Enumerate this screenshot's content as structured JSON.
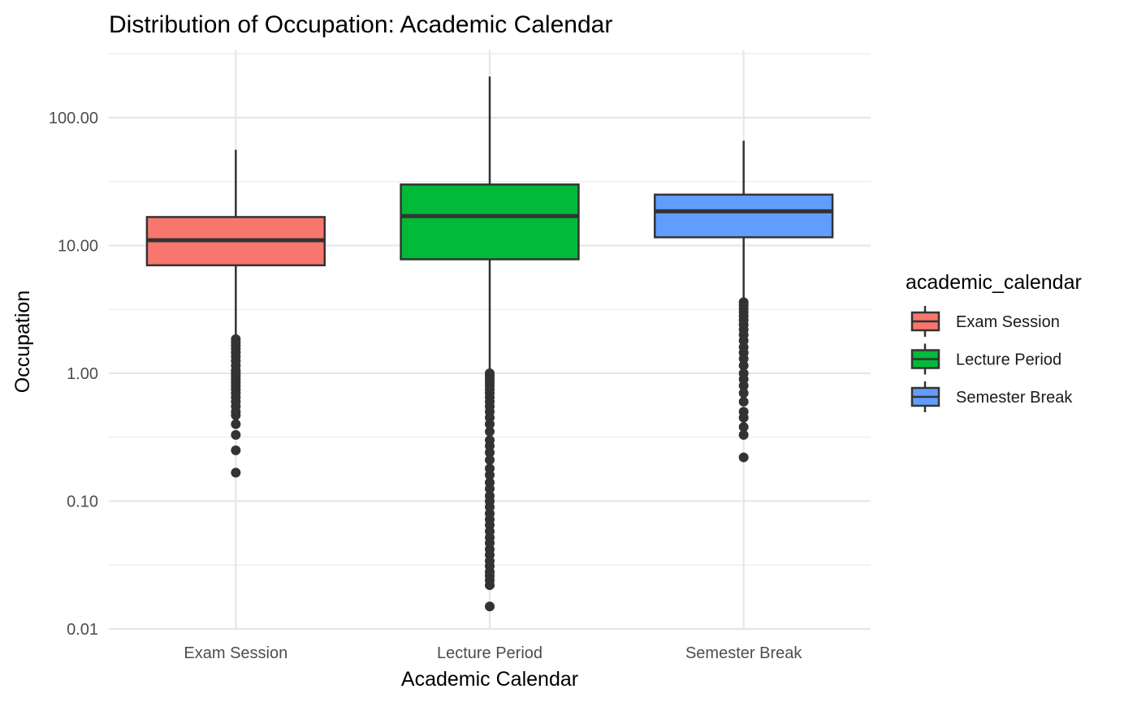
{
  "chart_data": {
    "type": "boxplot",
    "title": "Distribution of Occupation: Academic Calendar",
    "xlabel": "Academic Calendar",
    "ylabel": "Occupation",
    "y_scale": "log10",
    "ylim": [
      0.01,
      300
    ],
    "y_ticks": [
      0.01,
      0.1,
      1,
      10,
      100
    ],
    "y_tick_labels": [
      "0.01",
      "0.10",
      "1.00",
      "10.00",
      "100.00"
    ],
    "categories": [
      "Exam Session",
      "Lecture Period",
      "Semester Break"
    ],
    "grid": true,
    "legend": {
      "title": "academic_calendar",
      "position": "right",
      "entries": [
        "Exam Session",
        "Lecture Period",
        "Semester Break"
      ]
    },
    "series": [
      {
        "name": "Exam Session",
        "color": "#F8766D",
        "min": 1.95,
        "q1": 7.0,
        "median": 11.0,
        "q3": 16.7,
        "max": 56,
        "outliers": [
          1.85,
          1.75,
          1.65,
          1.55,
          1.45,
          1.35,
          1.25,
          1.15,
          1.05,
          1.0,
          0.95,
          0.9,
          0.85,
          0.8,
          0.75,
          0.7,
          0.65,
          0.6,
          0.55,
          0.5,
          0.47,
          0.4,
          0.33,
          0.25,
          0.167
        ]
      },
      {
        "name": "Lecture Period",
        "color": "#00BA38",
        "min": 1.05,
        "q1": 7.8,
        "median": 17.0,
        "q3": 30.0,
        "max": 210,
        "outliers": [
          1.0,
          0.95,
          0.9,
          0.85,
          0.8,
          0.75,
          0.7,
          0.65,
          0.6,
          0.55,
          0.5,
          0.45,
          0.4,
          0.35,
          0.3,
          0.27,
          0.24,
          0.21,
          0.18,
          0.16,
          0.14,
          0.125,
          0.11,
          0.1,
          0.09,
          0.08,
          0.072,
          0.065,
          0.058,
          0.052,
          0.047,
          0.042,
          0.038,
          0.034,
          0.031,
          0.028,
          0.026,
          0.024,
          0.022,
          0.015
        ]
      },
      {
        "name": "Semester Break",
        "color": "#619CFF",
        "min": 3.7,
        "q1": 11.6,
        "median": 18.5,
        "q3": 25.0,
        "max": 66,
        "outliers": [
          3.6,
          3.4,
          3.2,
          3.0,
          2.8,
          2.6,
          2.4,
          2.2,
          2.0,
          1.8,
          1.6,
          1.45,
          1.3,
          1.15,
          1.0,
          0.9,
          0.8,
          0.7,
          0.6,
          0.5,
          0.45,
          0.38,
          0.33,
          0.22
        ]
      }
    ]
  }
}
